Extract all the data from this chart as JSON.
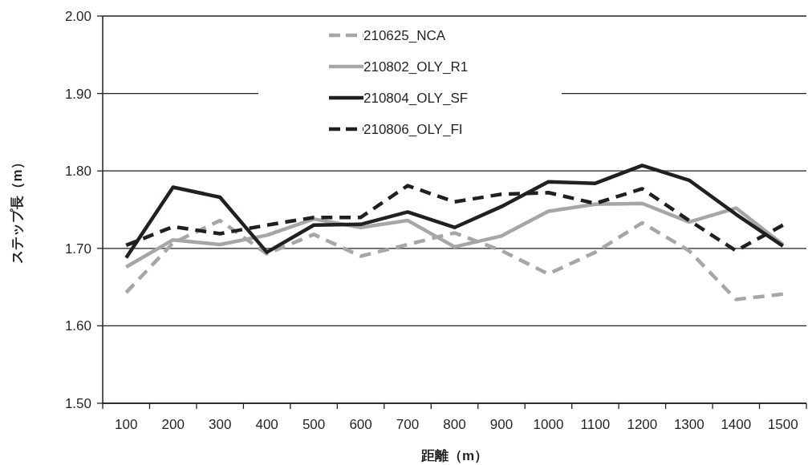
{
  "chart_data": {
    "type": "line",
    "ylabel": "ステップ長（m）",
    "xlabel": "距離（m）",
    "categories": [
      "100",
      "200",
      "300",
      "400",
      "500",
      "600",
      "700",
      "800",
      "900",
      "1000",
      "1100",
      "1200",
      "1300",
      "1400",
      "1500"
    ],
    "ylim": [
      1.5,
      2.0
    ],
    "yticks": [
      {
        "value": 1.5,
        "label": "1.50"
      },
      {
        "value": 1.6,
        "label": "1.60"
      },
      {
        "value": 1.7,
        "label": "1.70"
      },
      {
        "value": 1.8,
        "label": "1.80"
      },
      {
        "value": 1.9,
        "label": "1.90"
      },
      {
        "value": 2.0,
        "label": "2.00"
      }
    ],
    "grid": "y",
    "legend": "top",
    "marker": "none",
    "series": [
      {
        "name": "210625_NCA",
        "color": "#a6a6a6",
        "line_style": "dashed",
        "values": [
          1.643,
          1.707,
          1.736,
          1.693,
          1.718,
          1.69,
          1.705,
          1.72,
          1.697,
          1.667,
          1.695,
          1.733,
          1.697,
          1.634,
          1.641
        ]
      },
      {
        "name": "210802_OLY_R1",
        "color": "#a6a6a6",
        "line_style": "solid",
        "values": [
          1.676,
          1.711,
          1.705,
          1.717,
          1.738,
          1.727,
          1.736,
          1.702,
          1.716,
          1.748,
          1.757,
          1.758,
          1.734,
          1.752,
          1.705
        ]
      },
      {
        "name": "210804_OLY_SF",
        "color": "#231f20",
        "line_style": "solid",
        "values": [
          1.688,
          1.779,
          1.766,
          1.695,
          1.73,
          1.731,
          1.747,
          1.727,
          1.754,
          1.786,
          1.784,
          1.807,
          1.788,
          1.744,
          1.703
        ]
      },
      {
        "name": "210806_OLY_FI",
        "color": "#231f20",
        "line_style": "dashed",
        "values": [
          1.704,
          1.728,
          1.719,
          1.73,
          1.74,
          1.74,
          1.781,
          1.76,
          1.77,
          1.772,
          1.758,
          1.777,
          1.736,
          1.697,
          1.73
        ]
      }
    ]
  }
}
